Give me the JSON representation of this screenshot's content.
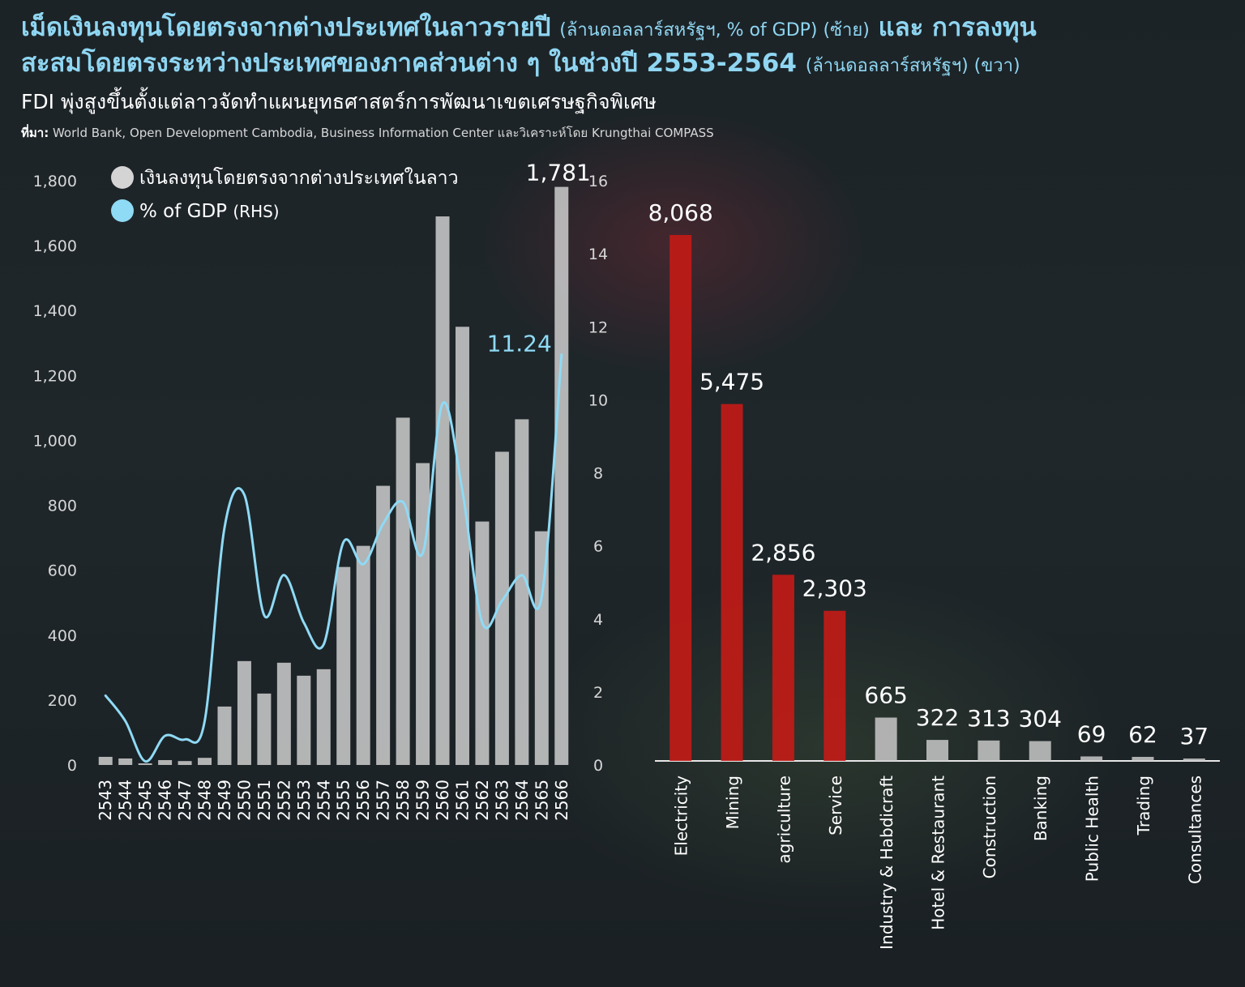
{
  "header": {
    "title_line1_main": "เม็ดเงินลงทุนโดยตรงจากต่างประเทศในลาวรายปี",
    "title_line1_unit": "(ล้านดอลลาร์สหรัฐฯ, % of GDP) (ซ้าย)",
    "title_line1_tail": "และ การลงทุน",
    "title_line2_main": "สะสมโดยตรงระหว่างประเทศของภาคส่วนต่าง ๆ ในช่วงปี 2553-2564",
    "title_line2_unit": "(ล้านดอลลาร์สหรัฐฯ) (ขวา)",
    "subtitle": "FDI พุ่งสูงขึ้นตั้งแต่ลาวจัดทำแผนยุทธศาสตร์การพัฒนาเขตเศรษฐกิจพิเศษ",
    "source_label": "ที่มา:",
    "source_text": "World Bank, Open Development Cambodia, Business Information Center และวิเคราะห์โดย Krungthai COMPASS"
  },
  "colors": {
    "gray_bar": "#d4d4d4",
    "line": "#8fdaf5",
    "red_bar": "#c41b16",
    "sector_gray": "#c8c8c8"
  },
  "chart_data": [
    {
      "type": "bar",
      "title": "",
      "legend": [
        {
          "name": "เงินลงทุนโดยตรงจากต่างประเทศในลาว",
          "color": "#d4d4d4"
        },
        {
          "name": "% of GDP",
          "suffix": "(RHS)",
          "color": "#8fdaf5"
        }
      ],
      "legend_position": "top-left",
      "categories": [
        "2543",
        "2544",
        "2545",
        "2546",
        "2547",
        "2548",
        "2549",
        "2550",
        "2551",
        "2552",
        "2553",
        "2554",
        "2555",
        "2556",
        "2557",
        "2558",
        "2559",
        "2560",
        "2561",
        "2562",
        "2563",
        "2564",
        "2565",
        "2566"
      ],
      "series": [
        {
          "name": "เงินลงทุนโดยตรงจากต่างประเทศในลาว",
          "type": "bar",
          "axis": "left",
          "values": [
            25,
            20,
            5,
            15,
            12,
            22,
            180,
            320,
            220,
            315,
            275,
            295,
            610,
            675,
            860,
            1070,
            930,
            1690,
            1350,
            750,
            965,
            1065,
            720,
            1781
          ],
          "data_labels": {
            "23": "1,781"
          }
        },
        {
          "name": "% of GDP",
          "type": "line",
          "axis": "right",
          "values": [
            1.9,
            1.2,
            0.1,
            0.8,
            0.7,
            1.2,
            6.5,
            7.4,
            4.1,
            5.2,
            3.9,
            3.3,
            6.1,
            5.5,
            6.6,
            7.2,
            5.8,
            9.9,
            7.5,
            3.9,
            4.5,
            5.2,
            4.6,
            11.24
          ],
          "data_labels": {
            "23": "11.24"
          }
        }
      ],
      "y_left": {
        "min": 0,
        "max": 1800,
        "ticks": [
          "0",
          "200",
          "400",
          "600",
          "800",
          "1,000",
          "1,200",
          "1,400",
          "1,600",
          "1,800"
        ]
      },
      "y_right": {
        "min": 0,
        "max": 16,
        "ticks": [
          "0",
          "2",
          "4",
          "6",
          "8",
          "10",
          "12",
          "14",
          "16"
        ]
      },
      "grid": false
    },
    {
      "type": "bar",
      "title": "",
      "categories": [
        "Electricity",
        "Mining",
        "agriculture",
        "Service",
        "Industry & Habdicraft",
        "Hotel & Restaurant",
        "Construction",
        "Banking",
        "Public Health",
        "Trading",
        "Consultances"
      ],
      "values": [
        8068,
        5475,
        2856,
        2303,
        665,
        322,
        313,
        304,
        69,
        62,
        37
      ],
      "value_labels": [
        "8,068",
        "5,475",
        "2,856",
        "2,303",
        "665",
        "322",
        "313",
        "304",
        "69",
        "62",
        "37"
      ],
      "highlight_count": 4,
      "grid": false
    }
  ]
}
